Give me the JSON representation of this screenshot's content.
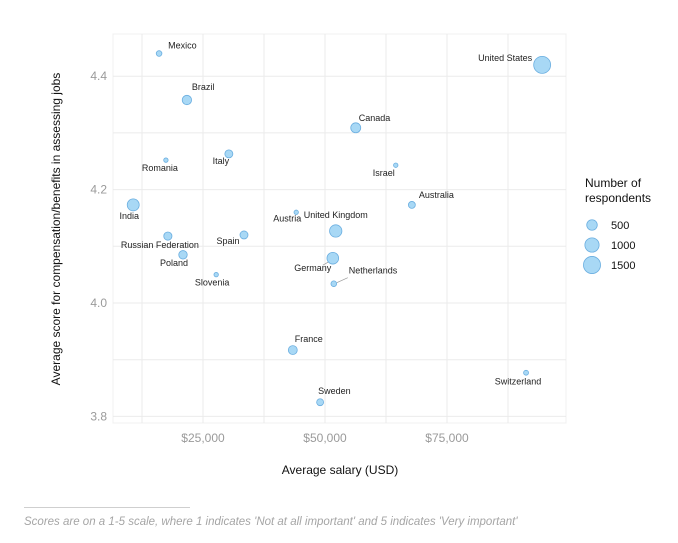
{
  "chart_data": {
    "type": "scatter",
    "title": "",
    "xlabel": "Average salary (USD)",
    "ylabel": "Average score for compensation/benefits in assessing jobs",
    "xlim": [
      7000,
      97000
    ],
    "ylim": [
      3.785,
      4.47
    ],
    "x_ticks": [
      25000,
      50000,
      75000
    ],
    "x_tick_labels": [
      "$25,000",
      "$50,000",
      "$75,000"
    ],
    "y_ticks": [
      3.8,
      4.0,
      4.2,
      4.4
    ],
    "y_tick_labels": [
      "3.8",
      "4.0",
      "4.2",
      "4.4"
    ],
    "grid": true,
    "legend": {
      "title_line1": "Number of",
      "title_line2": "respondents",
      "placement": "right",
      "entries": [
        {
          "label": "500",
          "value": 500
        },
        {
          "label": "1000",
          "value": 1000
        },
        {
          "label": "1500",
          "value": 1500
        }
      ]
    },
    "color": "#a8d8f5",
    "stroke": "#6aaee0",
    "points": [
      {
        "name": "Mexico",
        "x": 16000,
        "y": 4.44,
        "size": 200
      },
      {
        "name": "Brazil",
        "x": 21700,
        "y": 4.358,
        "size": 550
      },
      {
        "name": "Romania",
        "x": 17400,
        "y": 4.252,
        "size": 90
      },
      {
        "name": "Italy",
        "x": 30300,
        "y": 4.263,
        "size": 400
      },
      {
        "name": "India",
        "x": 10700,
        "y": 4.173,
        "size": 900
      },
      {
        "name": "Russian Federation",
        "x": 17800,
        "y": 4.118,
        "size": 420
      },
      {
        "name": "Poland",
        "x": 20900,
        "y": 4.085,
        "size": 450
      },
      {
        "name": "Spain",
        "x": 33400,
        "y": 4.12,
        "size": 400
      },
      {
        "name": "Slovenia",
        "x": 27700,
        "y": 4.05,
        "size": 100
      },
      {
        "name": "Austria",
        "x": 44100,
        "y": 4.16,
        "size": 120
      },
      {
        "name": "Canada",
        "x": 56300,
        "y": 4.309,
        "size": 620
      },
      {
        "name": "Israel",
        "x": 64500,
        "y": 4.243,
        "size": 110
      },
      {
        "name": "Australia",
        "x": 67800,
        "y": 4.173,
        "size": 300
      },
      {
        "name": "United Kingdom",
        "x": 52200,
        "y": 4.127,
        "size": 950
      },
      {
        "name": "Germany",
        "x": 51600,
        "y": 4.079,
        "size": 850
      },
      {
        "name": "Netherlands",
        "x": 51800,
        "y": 4.034,
        "size": 200
      },
      {
        "name": "France",
        "x": 43400,
        "y": 3.917,
        "size": 500
      },
      {
        "name": "Sweden",
        "x": 49000,
        "y": 3.825,
        "size": 300
      },
      {
        "name": "Switzerland",
        "x": 91200,
        "y": 3.877,
        "size": 150
      },
      {
        "name": "United States",
        "x": 94500,
        "y": 4.42,
        "size": 1800
      }
    ]
  },
  "footnote": "Scores are on a 1-5 scale, where 1 indicates 'Not at all important' and 5 indicates 'Very important'"
}
